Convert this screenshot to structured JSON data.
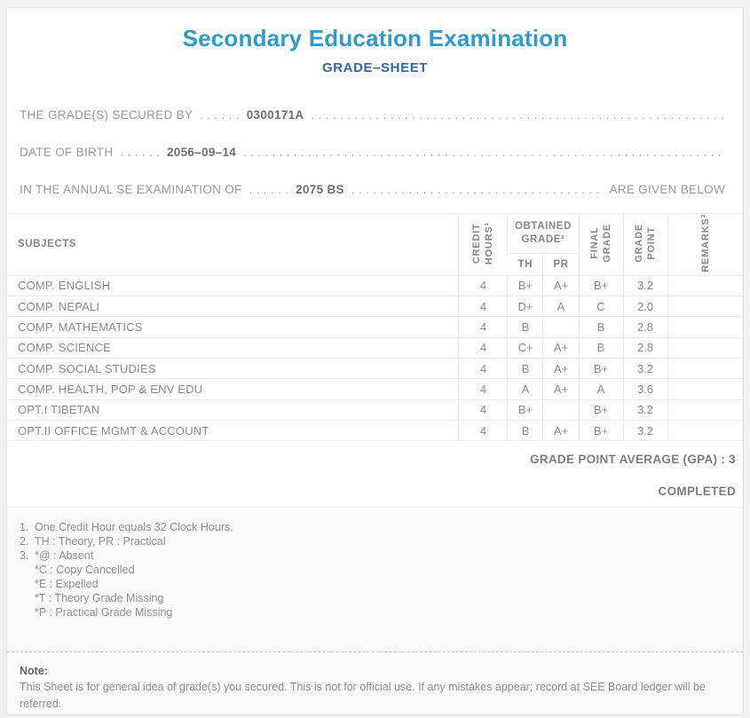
{
  "page": {
    "title": "Secondary Education Examination",
    "subtitle": "GRADE–SHEET"
  },
  "info": {
    "dots_fixed": ". . . . . .",
    "leader": ". . . . . . . . . . . . . . . . . . . . . . . . . . . . . . . . . . . . . . . . . . . . . . . . . . . . . . . . . . . . . . . . . . . . . . . . . . . . . . . . . . . . . . . . . . . . . . . . . . . . . . . . . . . . . . . . . . . . . . . . . . . .",
    "lines": [
      {
        "label": "THE GRADE(S) SECURED BY",
        "value": "0300171A",
        "suffix": ""
      },
      {
        "label": "DATE OF BIRTH",
        "value": "2056–09–14",
        "suffix": ""
      },
      {
        "label": "IN THE ANNUAL SE EXAMINATION OF",
        "value": "2075 BS",
        "suffix": "ARE GIVEN BELOW"
      }
    ]
  },
  "table": {
    "headers": {
      "subjects": "SUBJECTS",
      "credit_hours": "CREDIT\nHOURS¹",
      "obtained_grade": "OBTAINED\nGRADE²",
      "th": "TH",
      "pr": "PR",
      "final_grade": "FINAL\nGRADE",
      "grade_point": "GRADE\nPOINT",
      "remarks": "REMARKS³"
    },
    "rows": [
      {
        "subject": "COMP. ENGLISH",
        "credit": "4",
        "th": "B+",
        "pr": "A+",
        "final": "B+",
        "gp": "3.2",
        "remarks": ""
      },
      {
        "subject": "COMP. NEPALI",
        "credit": "4",
        "th": "D+",
        "pr": "A",
        "final": "C",
        "gp": "2.0",
        "remarks": ""
      },
      {
        "subject": "COMP. MATHEMATICS",
        "credit": "4",
        "th": "B",
        "pr": "",
        "final": "B",
        "gp": "2.8",
        "remarks": ""
      },
      {
        "subject": "COMP. SCIENCE",
        "credit": "4",
        "th": "C+",
        "pr": "A+",
        "final": "B",
        "gp": "2.8",
        "remarks": ""
      },
      {
        "subject": "COMP. SOCIAL STUDIES",
        "credit": "4",
        "th": "B",
        "pr": "A+",
        "final": "B+",
        "gp": "3.2",
        "remarks": ""
      },
      {
        "subject": "COMP. HEALTH, POP & ENV EDU",
        "credit": "4",
        "th": "A",
        "pr": "A+",
        "final": "A",
        "gp": "3.6",
        "remarks": ""
      },
      {
        "subject": "OPT.I TIBETAN",
        "credit": "4",
        "th": "B+",
        "pr": "",
        "final": "B+",
        "gp": "3.2",
        "remarks": ""
      },
      {
        "subject": "OPT.II OFFICE MGMT & ACCOUNT",
        "credit": "4",
        "th": "B",
        "pr": "A+",
        "final": "B+",
        "gp": "3.2",
        "remarks": ""
      }
    ]
  },
  "summary": {
    "gpa_line": "GRADE POINT AVERAGE (GPA) : 3",
    "status": "COMPLETED"
  },
  "footnotes": [
    {
      "num": "1.",
      "text": "One Credit Hour equals 32 Clock Hours."
    },
    {
      "num": "2.",
      "text": "TH : Theory, PR : Practical"
    },
    {
      "num": "3.",
      "text": "*@ : Absent"
    },
    {
      "num": "",
      "text": "*C : Copy Cancelled"
    },
    {
      "num": "",
      "text": "*E : Expelled"
    },
    {
      "num": "",
      "text": "*T : Theory Grade Missing"
    },
    {
      "num": "",
      "text": "*P : Practical Grade Missing"
    }
  ],
  "note": {
    "label": "Note:",
    "text": "This Sheet is for general idea of grade(s) you secured. This is not for official use. If any mistakes appear; record at SEE Board ledger will be referred."
  },
  "colors": {
    "title_blue": "#2e9bc9",
    "subtitle_blue": "#36689b",
    "body_gray": "#8b8b8b",
    "border_gray": "#ebebe8",
    "footer_bg": "#fafaf8"
  }
}
